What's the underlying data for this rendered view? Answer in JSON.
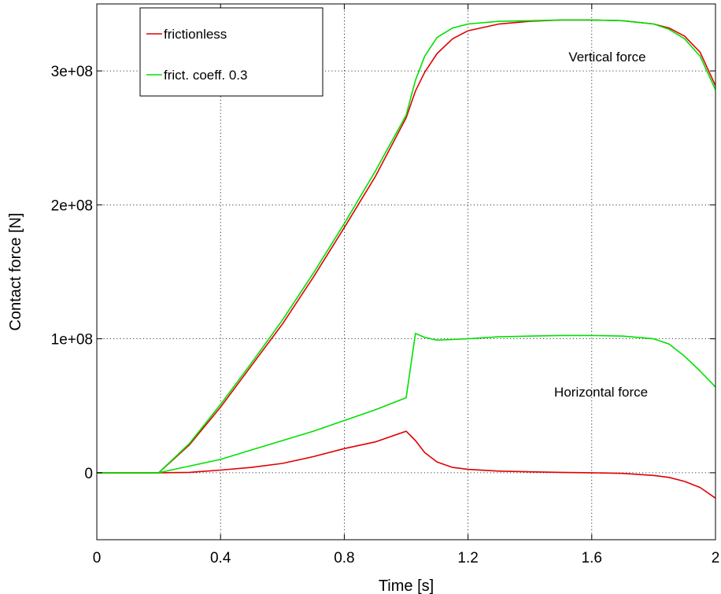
{
  "chart_data": {
    "type": "line",
    "title": "",
    "xlabel": "Time [s]",
    "ylabel": "Contact force [N]",
    "xlim": [
      0,
      2
    ],
    "ylim": [
      -50000000,
      350000000
    ],
    "xticks": [
      0,
      0.4,
      0.8,
      1.2,
      1.6,
      2
    ],
    "xtick_labels": [
      "0",
      "0.4",
      "0.8",
      "1.2",
      "1.6",
      "2"
    ],
    "yticks": [
      0,
      100000000,
      200000000,
      300000000
    ],
    "ytick_labels": [
      "0",
      "1e+08",
      "2e+08",
      "3e+08"
    ],
    "grid": true,
    "legend_position": "top-left",
    "annotations": [
      {
        "text": "Vertical force",
        "x": 1.65,
        "y": 307000000
      },
      {
        "text": "Horizontal force",
        "x": 1.63,
        "y": 57000000
      }
    ],
    "series": [
      {
        "name": "frictionless",
        "color": "#e00000",
        "component": "vertical",
        "x": [
          0,
          0.2,
          0.3,
          0.4,
          0.5,
          0.6,
          0.7,
          0.8,
          0.9,
          1.0,
          1.03,
          1.06,
          1.1,
          1.15,
          1.2,
          1.3,
          1.4,
          1.5,
          1.6,
          1.7,
          1.8,
          1.85,
          1.9,
          1.95,
          2.0
        ],
        "values": [
          0,
          0,
          21000000,
          49000000,
          80000000,
          111000000,
          146000000,
          183000000,
          221000000,
          265000000,
          285000000,
          299000000,
          313000000,
          324000000,
          330000000,
          335000000,
          337000000,
          338000000,
          338000000,
          337500000,
          335000000,
          332000000,
          326000000,
          314000000,
          289000000
        ]
      },
      {
        "name": "frict. coeff. 0.3",
        "color": "#00e000",
        "component": "vertical",
        "x": [
          0,
          0.2,
          0.3,
          0.4,
          0.5,
          0.6,
          0.7,
          0.8,
          0.9,
          1.0,
          1.03,
          1.06,
          1.1,
          1.15,
          1.2,
          1.3,
          1.4,
          1.5,
          1.6,
          1.7,
          1.8,
          1.85,
          1.9,
          1.95,
          2.0
        ],
        "values": [
          0,
          0,
          22000000,
          51000000,
          82000000,
          114000000,
          149000000,
          186000000,
          225000000,
          267000000,
          293000000,
          311000000,
          325000000,
          332000000,
          335000000,
          337000000,
          337500000,
          338000000,
          338000000,
          337500000,
          335000000,
          331000000,
          324000000,
          311000000,
          286000000
        ]
      },
      {
        "name": "frictionless",
        "color": "#e00000",
        "component": "horizontal",
        "x": [
          0,
          0.2,
          0.3,
          0.4,
          0.5,
          0.6,
          0.7,
          0.8,
          0.9,
          1.0,
          1.03,
          1.06,
          1.1,
          1.15,
          1.2,
          1.3,
          1.4,
          1.5,
          1.6,
          1.7,
          1.8,
          1.85,
          1.9,
          1.95,
          2.0
        ],
        "values": [
          0,
          0,
          300000,
          2000000,
          4000000,
          7000000,
          12000000,
          18000000,
          23000000,
          31000000,
          24000000,
          15000000,
          8000000,
          4000000,
          2500000,
          1200000,
          700000,
          300000,
          0,
          -500000,
          -2000000,
          -3500000,
          -6500000,
          -11000000,
          -19000000
        ]
      },
      {
        "name": "frict. coeff. 0.3",
        "color": "#00e000",
        "component": "horizontal",
        "x": [
          0,
          0.2,
          0.3,
          0.4,
          0.5,
          0.6,
          0.7,
          0.8,
          0.9,
          1.0,
          1.03,
          1.06,
          1.1,
          1.15,
          1.2,
          1.3,
          1.4,
          1.5,
          1.6,
          1.7,
          1.8,
          1.85,
          1.9,
          1.95,
          2.0
        ],
        "values": [
          0,
          0,
          5000000,
          10000000,
          17000000,
          24000000,
          31000000,
          39000000,
          47000000,
          56000000,
          104000000,
          101000000,
          99000000,
          99500000,
          100000000,
          101500000,
          102000000,
          102500000,
          102500000,
          102000000,
          100000000,
          96000000,
          87000000,
          76000000,
          64000000
        ]
      }
    ]
  }
}
